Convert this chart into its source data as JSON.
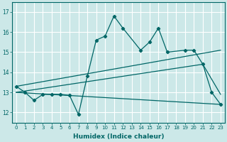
{
  "bg_color": "#cce8e8",
  "line_color": "#006666",
  "grid_color": "#b0d8d8",
  "xlabel": "Humidex (Indice chaleur)",
  "ylim": [
    11.5,
    17.5
  ],
  "xlim": [
    -0.5,
    23.5
  ],
  "yticks": [
    12,
    13,
    14,
    15,
    16,
    17
  ],
  "xticks": [
    0,
    1,
    2,
    3,
    4,
    5,
    6,
    7,
    8,
    9,
    10,
    11,
    12,
    13,
    14,
    15,
    16,
    17,
    18,
    19,
    20,
    21,
    22,
    23
  ],
  "series": [
    {
      "x": [
        0,
        1,
        2,
        3,
        4,
        5,
        6,
        7,
        8,
        9,
        10,
        11,
        12,
        14,
        15,
        16,
        17,
        19,
        20,
        21,
        22,
        23
      ],
      "y": [
        13.3,
        13.0,
        12.6,
        12.9,
        12.9,
        12.9,
        12.85,
        11.9,
        13.8,
        15.6,
        15.8,
        16.8,
        16.2,
        15.1,
        15.5,
        16.2,
        15.0,
        15.1,
        15.1,
        14.4,
        13.0,
        12.4
      ]
    },
    {
      "x": [
        0,
        23
      ],
      "y": [
        13.3,
        15.1
      ]
    },
    {
      "x": [
        0,
        21,
        23
      ],
      "y": [
        13.0,
        14.4,
        12.9
      ]
    },
    {
      "x": [
        0,
        23
      ],
      "y": [
        13.0,
        12.4
      ]
    }
  ]
}
